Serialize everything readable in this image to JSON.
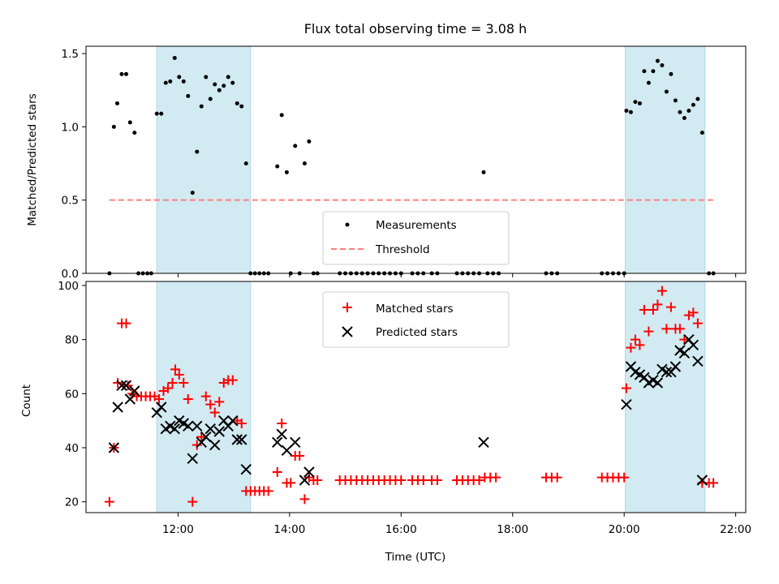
{
  "chart_data": [
    {
      "type": "scatter",
      "title": "Flux total observing time = 3.08 h",
      "ylabel": "Matched/Predicted stars",
      "xlabel": "",
      "ylim": [
        0,
        1.55
      ],
      "yticks": [
        0.0,
        0.5,
        1.0,
        1.5
      ],
      "ytick_labels": [
        "0.0",
        "0.5",
        "1.0",
        "1.5"
      ],
      "xlim_hours": [
        10.35,
        22.18
      ],
      "shaded_intervals_hours": [
        [
          11.62,
          13.3
        ],
        [
          20.02,
          21.45
        ]
      ],
      "shade_color": "#add8e6",
      "legend": {
        "placement": "lower center",
        "entries": [
          "Measurements",
          "Threshold"
        ]
      },
      "threshold": {
        "name": "Threshold",
        "value": 0.5,
        "x_range": [
          10.77,
          21.6
        ],
        "color": "#ff7f7f"
      },
      "series": [
        {
          "name": "Measurements",
          "color": "#000000",
          "points": [
            [
              10.77,
              0
            ],
            [
              10.85,
              1.0
            ],
            [
              10.91,
              1.16
            ],
            [
              10.99,
              1.36
            ],
            [
              11.07,
              1.36
            ],
            [
              11.14,
              1.03
            ],
            [
              11.22,
              0.96
            ],
            [
              11.29,
              0
            ],
            [
              11.37,
              0
            ],
            [
              11.45,
              0
            ],
            [
              11.52,
              0
            ],
            [
              11.62,
              1.09
            ],
            [
              11.7,
              1.09
            ],
            [
              11.78,
              1.3
            ],
            [
              11.86,
              1.31
            ],
            [
              11.94,
              1.47
            ],
            [
              12.02,
              1.34
            ],
            [
              12.1,
              1.31
            ],
            [
              12.18,
              1.21
            ],
            [
              12.26,
              0.55
            ],
            [
              12.34,
              0.83
            ],
            [
              12.42,
              1.14
            ],
            [
              12.5,
              1.34
            ],
            [
              12.58,
              1.19
            ],
            [
              12.66,
              1.29
            ],
            [
              12.74,
              1.25
            ],
            [
              12.82,
              1.28
            ],
            [
              12.9,
              1.34
            ],
            [
              12.98,
              1.3
            ],
            [
              13.06,
              1.16
            ],
            [
              13.14,
              1.14
            ],
            [
              13.22,
              0.75
            ],
            [
              13.3,
              0
            ],
            [
              13.38,
              0
            ],
            [
              13.46,
              0
            ],
            [
              13.54,
              0
            ],
            [
              13.62,
              0
            ],
            [
              13.78,
              0.73
            ],
            [
              13.86,
              1.08
            ],
            [
              13.95,
              0.69
            ],
            [
              14.02,
              0
            ],
            [
              14.1,
              0.87
            ],
            [
              14.18,
              0
            ],
            [
              14.27,
              0.75
            ],
            [
              14.35,
              0.9
            ],
            [
              14.43,
              0
            ],
            [
              14.5,
              0
            ],
            [
              14.9,
              0
            ],
            [
              15.0,
              0
            ],
            [
              15.1,
              0
            ],
            [
              15.2,
              0
            ],
            [
              15.3,
              0
            ],
            [
              15.4,
              0
            ],
            [
              15.5,
              0
            ],
            [
              15.6,
              0
            ],
            [
              15.7,
              0
            ],
            [
              15.8,
              0
            ],
            [
              15.9,
              0
            ],
            [
              16.0,
              0
            ],
            [
              16.2,
              0
            ],
            [
              16.3,
              0
            ],
            [
              16.4,
              0
            ],
            [
              16.55,
              0
            ],
            [
              16.65,
              0
            ],
            [
              17.0,
              0
            ],
            [
              17.1,
              0
            ],
            [
              17.2,
              0
            ],
            [
              17.3,
              0
            ],
            [
              17.4,
              0
            ],
            [
              17.48,
              0.69
            ],
            [
              17.55,
              0
            ],
            [
              17.65,
              0
            ],
            [
              17.75,
              0
            ],
            [
              18.6,
              0
            ],
            [
              18.7,
              0
            ],
            [
              18.8,
              0
            ],
            [
              19.6,
              0
            ],
            [
              19.7,
              0
            ],
            [
              19.8,
              0
            ],
            [
              19.9,
              0
            ],
            [
              20.0,
              0
            ],
            [
              20.04,
              1.11
            ],
            [
              20.12,
              1.1
            ],
            [
              20.2,
              1.17
            ],
            [
              20.28,
              1.16
            ],
            [
              20.36,
              1.38
            ],
            [
              20.44,
              1.3
            ],
            [
              20.52,
              1.38
            ],
            [
              20.6,
              1.45
            ],
            [
              20.68,
              1.42
            ],
            [
              20.76,
              1.24
            ],
            [
              20.84,
              1.36
            ],
            [
              20.92,
              1.18
            ],
            [
              21.0,
              1.1
            ],
            [
              21.08,
              1.06
            ],
            [
              21.16,
              1.11
            ],
            [
              21.24,
              1.15
            ],
            [
              21.32,
              1.19
            ],
            [
              21.4,
              0.96
            ],
            [
              21.52,
              0
            ],
            [
              21.6,
              0
            ]
          ]
        }
      ]
    },
    {
      "type": "scatter",
      "title": "",
      "xlabel": "Time (UTC)",
      "ylabel": "Count",
      "ylim": [
        16,
        101.5
      ],
      "yticks": [
        20,
        40,
        60,
        80,
        100
      ],
      "ytick_labels": [
        "20",
        "40",
        "60",
        "80",
        "100"
      ],
      "xlim_hours": [
        10.35,
        22.18
      ],
      "xticks_hours": [
        12,
        14,
        16,
        18,
        20,
        22
      ],
      "xtick_labels": [
        "12:00",
        "14:00",
        "16:00",
        "18:00",
        "20:00",
        "22:00"
      ],
      "shaded_intervals_hours": [
        [
          11.62,
          13.3
        ],
        [
          20.02,
          21.45
        ]
      ],
      "legend": {
        "placement": "upper center",
        "entries": [
          "Matched stars",
          "Predicted stars"
        ]
      },
      "series": [
        {
          "name": "Matched stars",
          "marker": "plus",
          "color": "#ff0000",
          "points": [
            [
              10.77,
              20
            ],
            [
              10.85,
              40
            ],
            [
              10.92,
              64
            ],
            [
              10.99,
              86
            ],
            [
              11.07,
              86
            ],
            [
              11.1,
              63
            ],
            [
              11.18,
              60
            ],
            [
              11.26,
              59
            ],
            [
              11.34,
              59
            ],
            [
              11.42,
              59
            ],
            [
              11.5,
              59
            ],
            [
              11.58,
              59
            ],
            [
              11.66,
              58
            ],
            [
              11.74,
              61
            ],
            [
              11.82,
              62
            ],
            [
              11.9,
              64
            ],
            [
              11.95,
              69
            ],
            [
              12.02,
              67
            ],
            [
              12.1,
              64
            ],
            [
              12.18,
              58
            ],
            [
              12.26,
              20
            ],
            [
              12.34,
              41
            ],
            [
              12.42,
              44
            ],
            [
              12.5,
              59
            ],
            [
              12.58,
              56
            ],
            [
              12.66,
              53
            ],
            [
              12.74,
              57
            ],
            [
              12.82,
              64
            ],
            [
              12.9,
              65
            ],
            [
              12.98,
              65
            ],
            [
              13.06,
              50
            ],
            [
              13.14,
              49
            ],
            [
              13.22,
              24
            ],
            [
              13.3,
              24
            ],
            [
              13.38,
              24
            ],
            [
              13.46,
              24
            ],
            [
              13.54,
              24
            ],
            [
              13.62,
              24
            ],
            [
              13.78,
              31
            ],
            [
              13.86,
              49
            ],
            [
              13.95,
              27
            ],
            [
              14.02,
              27
            ],
            [
              14.1,
              37
            ],
            [
              14.18,
              37
            ],
            [
              14.27,
              21
            ],
            [
              14.35,
              29
            ],
            [
              14.43,
              28
            ],
            [
              14.5,
              28
            ],
            [
              14.9,
              28
            ],
            [
              15.0,
              28
            ],
            [
              15.1,
              28
            ],
            [
              15.2,
              28
            ],
            [
              15.3,
              28
            ],
            [
              15.4,
              28
            ],
            [
              15.5,
              28
            ],
            [
              15.6,
              28
            ],
            [
              15.7,
              28
            ],
            [
              15.8,
              28
            ],
            [
              15.9,
              28
            ],
            [
              16.0,
              28
            ],
            [
              16.2,
              28
            ],
            [
              16.3,
              28
            ],
            [
              16.4,
              28
            ],
            [
              16.55,
              28
            ],
            [
              16.65,
              28
            ],
            [
              17.0,
              28
            ],
            [
              17.1,
              28
            ],
            [
              17.2,
              28
            ],
            [
              17.3,
              28
            ],
            [
              17.4,
              28
            ],
            [
              17.5,
              29
            ],
            [
              17.6,
              29
            ],
            [
              17.7,
              29
            ],
            [
              18.6,
              29
            ],
            [
              18.7,
              29
            ],
            [
              18.8,
              29
            ],
            [
              19.6,
              29
            ],
            [
              19.7,
              29
            ],
            [
              19.8,
              29
            ],
            [
              19.9,
              29
            ],
            [
              20.0,
              29
            ],
            [
              20.04,
              62
            ],
            [
              20.12,
              77
            ],
            [
              20.2,
              80
            ],
            [
              20.28,
              78
            ],
            [
              20.36,
              91
            ],
            [
              20.44,
              83
            ],
            [
              20.52,
              91
            ],
            [
              20.6,
              93
            ],
            [
              20.68,
              98
            ],
            [
              20.76,
              84
            ],
            [
              20.84,
              92
            ],
            [
              20.92,
              84
            ],
            [
              21.0,
              84
            ],
            [
              21.08,
              80
            ],
            [
              21.16,
              89
            ],
            [
              21.24,
              90
            ],
            [
              21.32,
              86
            ],
            [
              21.4,
              27
            ],
            [
              21.52,
              27
            ],
            [
              21.6,
              27
            ]
          ]
        },
        {
          "name": "Predicted stars",
          "marker": "x",
          "color": "#000000",
          "points": [
            [
              10.85,
              40
            ],
            [
              10.92,
              55
            ],
            [
              10.99,
              63
            ],
            [
              11.07,
              63
            ],
            [
              11.14,
              58
            ],
            [
              11.22,
              61
            ],
            [
              11.62,
              53
            ],
            [
              11.7,
              55
            ],
            [
              11.78,
              47
            ],
            [
              11.86,
              48
            ],
            [
              11.94,
              47
            ],
            [
              12.02,
              50
            ],
            [
              12.1,
              49
            ],
            [
              12.18,
              48
            ],
            [
              12.26,
              36
            ],
            [
              12.34,
              48
            ],
            [
              12.42,
              42
            ],
            [
              12.5,
              44
            ],
            [
              12.58,
              47
            ],
            [
              12.66,
              41
            ],
            [
              12.74,
              46
            ],
            [
              12.82,
              50
            ],
            [
              12.9,
              48
            ],
            [
              12.98,
              50
            ],
            [
              13.06,
              43
            ],
            [
              13.14,
              43
            ],
            [
              13.22,
              32
            ],
            [
              13.78,
              42
            ],
            [
              13.86,
              45
            ],
            [
              13.95,
              39
            ],
            [
              14.1,
              42
            ],
            [
              14.27,
              28
            ],
            [
              14.35,
              31
            ],
            [
              17.48,
              42
            ],
            [
              20.04,
              56
            ],
            [
              20.12,
              70
            ],
            [
              20.2,
              68
            ],
            [
              20.28,
              67
            ],
            [
              20.36,
              66
            ],
            [
              20.44,
              64
            ],
            [
              20.52,
              65
            ],
            [
              20.6,
              64
            ],
            [
              20.68,
              69
            ],
            [
              20.76,
              68
            ],
            [
              20.84,
              68
            ],
            [
              20.92,
              70
            ],
            [
              21.0,
              76
            ],
            [
              21.08,
              75
            ],
            [
              21.16,
              80
            ],
            [
              21.24,
              78
            ],
            [
              21.32,
              72
            ],
            [
              21.4,
              28
            ]
          ]
        }
      ]
    }
  ]
}
